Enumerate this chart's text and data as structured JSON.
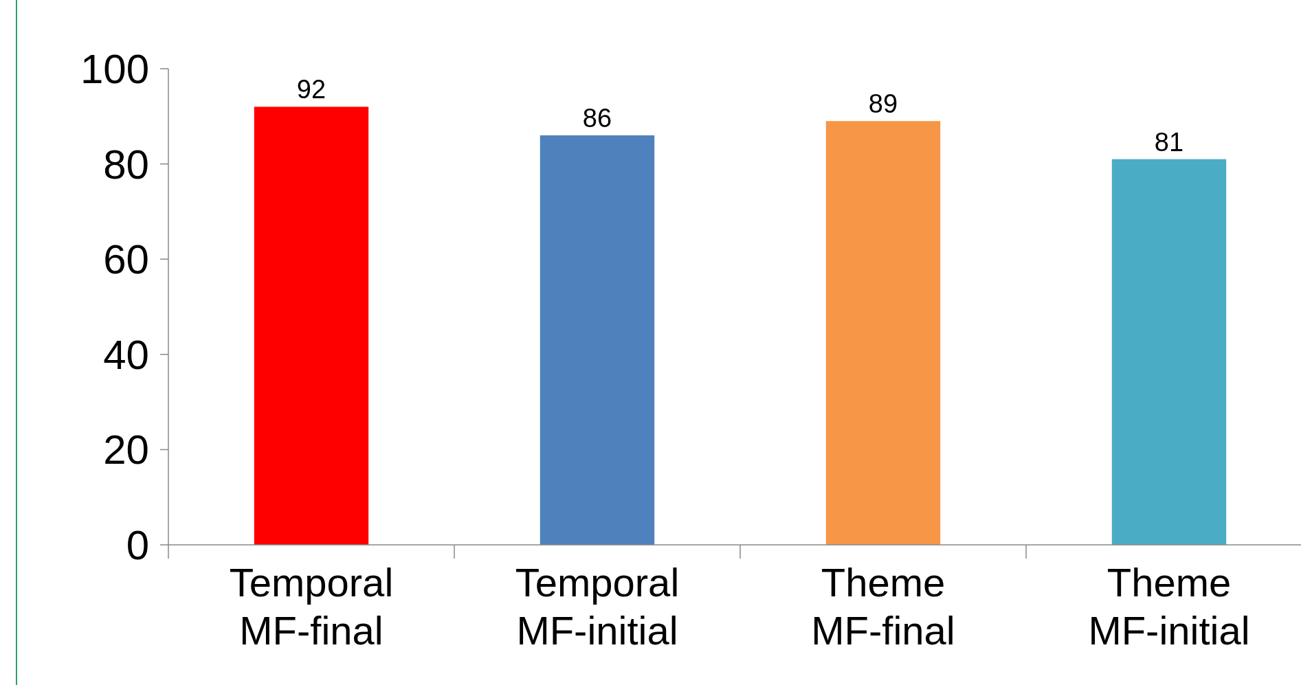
{
  "chart_data": {
    "type": "bar",
    "categories": [
      "Temporal\nMF-final",
      "Temporal\nMF-initial",
      "Theme\nMF-final",
      "Theme\nMF-initial"
    ],
    "values": [
      92,
      86,
      89,
      81
    ],
    "colors": [
      "#ff0000",
      "#4f81bd",
      "#f79646",
      "#4bacc6"
    ],
    "ylim": [
      0,
      100
    ],
    "yticks": [
      0,
      20,
      40,
      60,
      80,
      100
    ],
    "data_labels": true
  }
}
